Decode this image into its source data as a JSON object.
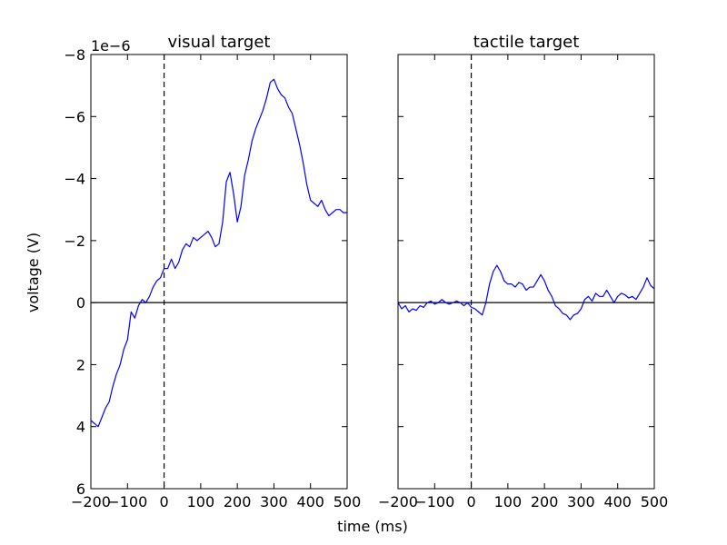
{
  "figure": {
    "xlabel": "time (ms)",
    "ylabel": "voltage (V)",
    "offset_text": "1e−6"
  },
  "chart_data": [
    {
      "type": "line",
      "title": "visual target",
      "xlim": [
        -200,
        500
      ],
      "ylim": [
        6,
        -8
      ],
      "y_inverted": true,
      "y_scale_factor": "1e-6",
      "x_ticks": [
        -200,
        -100,
        0,
        100,
        200,
        300,
        400,
        500
      ],
      "x_tick_labels": [
        "−200",
        "−100",
        "0",
        "100",
        "200",
        "300",
        "400",
        "500"
      ],
      "y_ticks": [
        -8,
        -6,
        -4,
        -2,
        0,
        2,
        4,
        6
      ],
      "y_tick_labels": [
        "−8",
        "−6",
        "−4",
        "−2",
        "0",
        "2",
        "4",
        "6"
      ],
      "reference_lines": {
        "vertical_dashed_x": 0,
        "horizontal_solid_y": 0
      },
      "series": [
        {
          "color": "#0000ff",
          "x": [
            -200,
            -190,
            -180,
            -170,
            -160,
            -150,
            -140,
            -130,
            -120,
            -110,
            -100,
            -90,
            -80,
            -70,
            -60,
            -50,
            -40,
            -30,
            -20,
            -10,
            0,
            10,
            20,
            30,
            40,
            50,
            60,
            70,
            80,
            90,
            100,
            110,
            120,
            130,
            140,
            150,
            160,
            170,
            180,
            190,
            200,
            210,
            220,
            230,
            240,
            250,
            260,
            270,
            280,
            290,
            300,
            310,
            320,
            330,
            340,
            350,
            360,
            370,
            380,
            390,
            400,
            410,
            420,
            430,
            440,
            450,
            460,
            470,
            480,
            490,
            500
          ],
          "y": [
            3.8,
            3.9,
            4.0,
            3.7,
            3.4,
            3.2,
            2.7,
            2.3,
            2.0,
            1.5,
            1.2,
            0.3,
            0.5,
            0.1,
            -0.1,
            0.0,
            -0.2,
            -0.5,
            -0.7,
            -0.8,
            -1.1,
            -1.1,
            -1.4,
            -1.1,
            -1.3,
            -1.7,
            -1.9,
            -1.8,
            -2.1,
            -2.0,
            -2.1,
            -2.2,
            -2.3,
            -2.1,
            -1.8,
            -1.9,
            -2.6,
            -3.9,
            -4.2,
            -3.5,
            -2.6,
            -3.1,
            -4.1,
            -4.6,
            -5.2,
            -5.6,
            -5.9,
            -6.2,
            -6.6,
            -7.1,
            -7.2,
            -6.9,
            -6.7,
            -6.6,
            -6.3,
            -6.1,
            -5.6,
            -5.1,
            -4.5,
            -3.8,
            -3.3,
            -3.2,
            -3.1,
            -3.3,
            -3.0,
            -2.8,
            -2.9,
            -3.0,
            -3.0,
            -2.9,
            -2.9
          ]
        }
      ]
    },
    {
      "type": "line",
      "title": "tactile target",
      "xlim": [
        -200,
        500
      ],
      "ylim": [
        6,
        -8
      ],
      "y_inverted": true,
      "y_scale_factor": "1e-6",
      "x_ticks": [
        -200,
        -100,
        0,
        100,
        200,
        300,
        400,
        500
      ],
      "x_tick_labels": [
        "−200",
        "−100",
        "0",
        "100",
        "200",
        "300",
        "400",
        "500"
      ],
      "y_ticks": [
        -8,
        -6,
        -4,
        -2,
        0,
        2,
        4,
        6
      ],
      "y_tick_labels": [],
      "reference_lines": {
        "vertical_dashed_x": 0,
        "horizontal_solid_y": 0
      },
      "series": [
        {
          "color": "#0000ff",
          "x": [
            -200,
            -190,
            -180,
            -170,
            -160,
            -150,
            -140,
            -130,
            -120,
            -110,
            -100,
            -90,
            -80,
            -70,
            -60,
            -50,
            -40,
            -30,
            -20,
            -10,
            0,
            10,
            20,
            30,
            40,
            50,
            60,
            70,
            80,
            90,
            100,
            110,
            120,
            130,
            140,
            150,
            160,
            170,
            180,
            190,
            200,
            210,
            220,
            230,
            240,
            250,
            260,
            270,
            280,
            290,
            300,
            310,
            320,
            330,
            340,
            350,
            360,
            370,
            380,
            390,
            400,
            410,
            420,
            430,
            440,
            450,
            460,
            470,
            480,
            490,
            500
          ],
          "y": [
            0.0,
            0.2,
            0.1,
            0.3,
            0.2,
            0.25,
            0.1,
            0.15,
            0.0,
            -0.05,
            0.05,
            0.0,
            -0.1,
            0.0,
            0.05,
            0.0,
            -0.05,
            0.0,
            0.1,
            0.0,
            0.15,
            0.2,
            0.3,
            0.4,
            0.0,
            -0.6,
            -1.0,
            -1.2,
            -1.0,
            -0.7,
            -0.6,
            -0.6,
            -0.5,
            -0.65,
            -0.6,
            -0.4,
            -0.5,
            -0.5,
            -0.7,
            -0.9,
            -0.7,
            -0.4,
            -0.2,
            0.1,
            0.2,
            0.35,
            0.4,
            0.55,
            0.4,
            0.35,
            0.2,
            -0.1,
            -0.2,
            -0.05,
            -0.3,
            -0.2,
            -0.2,
            -0.4,
            -0.2,
            0.0,
            -0.2,
            -0.3,
            -0.25,
            -0.15,
            -0.2,
            -0.1,
            -0.3,
            -0.5,
            -0.8,
            -0.55,
            -0.45
          ]
        }
      ]
    }
  ]
}
